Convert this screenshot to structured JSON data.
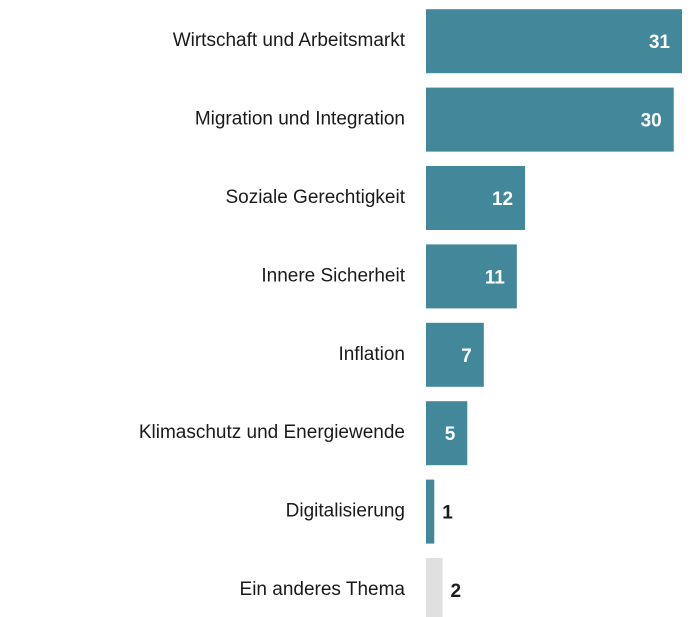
{
  "chart_data": {
    "type": "hbar",
    "categories": [
      "Wirtschaft und Arbeitsmarkt",
      "Migration und Integration",
      "Soziale Gerechtigkeit",
      "Innere Sicherheit",
      "Inflation",
      "Klimaschutz und Energiewende",
      "Digitalisierung",
      "Ein anderes Thema"
    ],
    "values": [
      31,
      30,
      12,
      11,
      7,
      5,
      1,
      2
    ],
    "colors": [
      "#43879b",
      "#43879b",
      "#43879b",
      "#43879b",
      "#43879b",
      "#43879b",
      "#43879b",
      "#e0e0e0"
    ]
  }
}
